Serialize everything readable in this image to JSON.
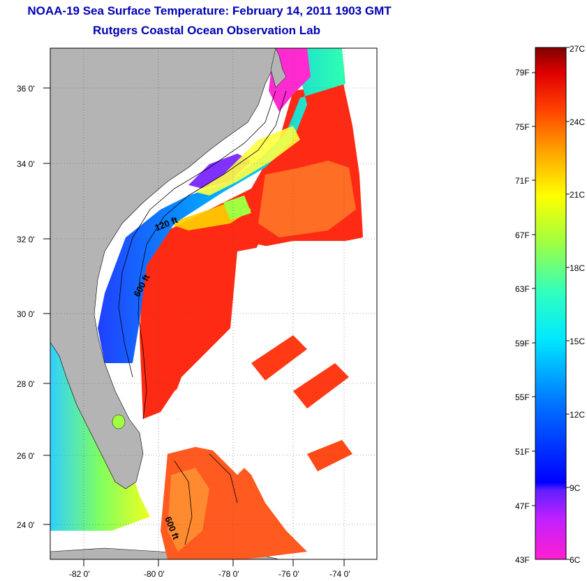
{
  "title": {
    "line1": "NOAA-19 Sea Surface Temperature:  February 14, 2011 1903 GMT",
    "line2": "Rutgers Coastal Ocean Observation Lab"
  },
  "map": {
    "lon_ticks": [
      "-82 0'",
      "-80 0'",
      "-78 0'",
      "-76 0'",
      "-74 0'"
    ],
    "lat_ticks": [
      "36 0'",
      "34 0'",
      "32 0'",
      "30 0'",
      "28 0'",
      "26 0'",
      "24 0'"
    ],
    "contour_labels": [
      "120 ft",
      "600 ft",
      "600 ft"
    ],
    "colors": {
      "land": "#b4b4b4",
      "cloud": "#ffffff",
      "gulf_stream": "#ff2a14",
      "warm_orange": "#ff6a20",
      "cold_shelf": "#3c50ff"
    }
  },
  "colorbar": {
    "fahrenheit_labels": [
      "79F",
      "75F",
      "71F",
      "67F",
      "63F",
      "59F",
      "55F",
      "51F",
      "47F",
      "43F"
    ],
    "celsius_labels": [
      "27C",
      "24C",
      "21C",
      "18C",
      "15C",
      "12C",
      "9C",
      "6C"
    ],
    "range_c": [
      6,
      27
    ],
    "range_f": [
      43,
      80
    ]
  }
}
